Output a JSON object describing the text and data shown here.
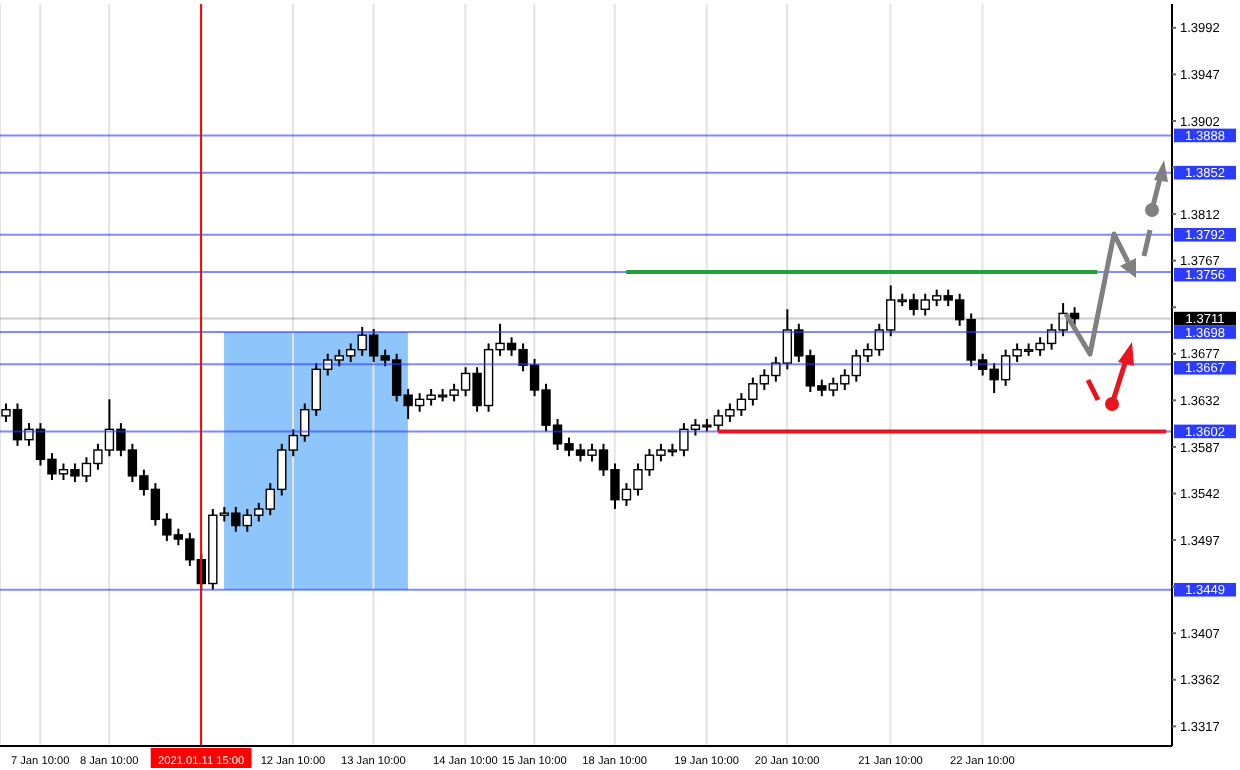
{
  "chart_data": {
    "type": "candlestick",
    "categories": [
      null,
      null,
      null,
      "7 Jan 10:00",
      null,
      null,
      null,
      null,
      null,
      "8 Jan 10:00",
      null,
      null,
      null,
      null,
      null,
      null,
      null,
      "2021.01.11 15:00",
      null,
      null,
      null,
      null,
      null,
      null,
      null,
      "12 Jan 10:00",
      null,
      null,
      null,
      null,
      null,
      null,
      "13 Jan 10:00",
      null,
      null,
      null,
      null,
      null,
      null,
      null,
      "14 Jan 10:00",
      null,
      null,
      null,
      null,
      null,
      "15 Jan 10:00",
      null,
      null,
      null,
      null,
      null,
      null,
      "18 Jan 10:00",
      null,
      null,
      null,
      null,
      null,
      null,
      null,
      "19 Jan 10:00",
      null,
      null,
      null,
      null,
      null,
      null,
      "20 Jan 10:00",
      null,
      null,
      null,
      null,
      null,
      null,
      null,
      null,
      "21 Jan 10:00",
      null,
      null,
      null,
      null,
      null,
      null,
      null,
      "22 Jan 10:00",
      null,
      null,
      null,
      null,
      null,
      null,
      null,
      null,
      null,
      null,
      null,
      null,
      null,
      null,
      null,
      null
    ],
    "series": [
      {
        "color": "#000000",
        "ohlc": [
          [
            1.3617,
            1.3629,
            1.3611,
            1.3623
          ],
          [
            1.3623,
            1.3629,
            1.3588,
            1.3594
          ],
          [
            1.3594,
            1.361,
            1.3588,
            1.3604
          ],
          [
            1.3604,
            1.361,
            1.3569,
            1.3575
          ],
          [
            1.3575,
            1.3581,
            1.3555,
            1.3561
          ],
          [
            1.3561,
            1.3571,
            1.3555,
            1.3565
          ],
          [
            1.3565,
            1.3571,
            1.3553,
            1.3559
          ],
          [
            1.3559,
            1.3577,
            1.3553,
            1.3571
          ],
          [
            1.3571,
            1.359,
            1.3565,
            1.3584
          ],
          [
            1.3584,
            1.3633,
            1.3578,
            1.3604
          ],
          [
            1.3604,
            1.361,
            1.3578,
            1.3584
          ],
          [
            1.3584,
            1.359,
            1.3553,
            1.3559
          ],
          [
            1.3559,
            1.3565,
            1.354,
            1.3546
          ],
          [
            1.3546,
            1.3552,
            1.3511,
            1.3517
          ],
          [
            1.3517,
            1.3523,
            1.3496,
            1.3502
          ],
          [
            1.3502,
            1.3508,
            1.3492,
            1.3498
          ],
          [
            1.3498,
            1.3504,
            1.3472,
            1.3478
          ],
          [
            1.3478,
            1.3484,
            1.3449,
            1.3455
          ],
          [
            1.3455,
            1.3527,
            1.3449,
            1.3521
          ],
          [
            1.3521,
            1.3529,
            1.3515,
            1.3523
          ],
          [
            1.3523,
            1.3529,
            1.3505,
            1.3511
          ],
          [
            1.3511,
            1.3527,
            1.3505,
            1.3521
          ],
          [
            1.3521,
            1.3533,
            1.3515,
            1.3527
          ],
          [
            1.3527,
            1.3552,
            1.3521,
            1.3546
          ],
          [
            1.3546,
            1.359,
            1.354,
            1.3584
          ],
          [
            1.3584,
            1.3604,
            1.3578,
            1.3598
          ],
          [
            1.3598,
            1.3629,
            1.3592,
            1.3623
          ],
          [
            1.3623,
            1.3668,
            1.3617,
            1.3662
          ],
          [
            1.3662,
            1.3677,
            1.3656,
            1.3671
          ],
          [
            1.3671,
            1.3681,
            1.3665,
            1.3675
          ],
          [
            1.3675,
            1.3687,
            1.3669,
            1.3681
          ],
          [
            1.3681,
            1.3703,
            1.3675,
            1.3695
          ],
          [
            1.3695,
            1.3701,
            1.3669,
            1.3675
          ],
          [
            1.3675,
            1.3681,
            1.3665,
            1.3671
          ],
          [
            1.3671,
            1.3677,
            1.3631,
            1.3637
          ],
          [
            1.3637,
            1.3643,
            1.3614,
            1.3627
          ],
          [
            1.3627,
            1.3639,
            1.3621,
            1.3633
          ],
          [
            1.3633,
            1.3643,
            1.3627,
            1.3637
          ],
          [
            1.3637,
            1.3643,
            1.3631,
            1.3637
          ],
          [
            1.3637,
            1.3648,
            1.3631,
            1.3642
          ],
          [
            1.3642,
            1.3664,
            1.3636,
            1.3658
          ],
          [
            1.3658,
            1.3664,
            1.3621,
            1.3627
          ],
          [
            1.3627,
            1.3687,
            1.3621,
            1.3681
          ],
          [
            1.3681,
            1.3706,
            1.3675,
            1.3687
          ],
          [
            1.3687,
            1.3693,
            1.3675,
            1.3681
          ],
          [
            1.3681,
            1.3687,
            1.366,
            1.3666
          ],
          [
            1.3666,
            1.3672,
            1.3636,
            1.3642
          ],
          [
            1.3642,
            1.3648,
            1.3602,
            1.3608
          ],
          [
            1.3608,
            1.3614,
            1.3584,
            1.359
          ],
          [
            1.359,
            1.3596,
            1.3578,
            1.3584
          ],
          [
            1.3584,
            1.359,
            1.3573,
            1.3579
          ],
          [
            1.3579,
            1.359,
            1.3573,
            1.3584
          ],
          [
            1.3584,
            1.359,
            1.3559,
            1.3565
          ],
          [
            1.3565,
            1.3571,
            1.3527,
            1.3536
          ],
          [
            1.3536,
            1.3552,
            1.353,
            1.3546
          ],
          [
            1.3546,
            1.3571,
            1.354,
            1.3565
          ],
          [
            1.3565,
            1.3585,
            1.3559,
            1.3579
          ],
          [
            1.3579,
            1.359,
            1.3573,
            1.3584
          ],
          [
            1.3584,
            1.359,
            1.3578,
            1.3584
          ],
          [
            1.3584,
            1.361,
            1.3578,
            1.3604
          ],
          [
            1.3604,
            1.3614,
            1.3598,
            1.3608
          ],
          [
            1.3608,
            1.3614,
            1.3602,
            1.3608
          ],
          [
            1.3608,
            1.3623,
            1.3602,
            1.3617
          ],
          [
            1.3617,
            1.3629,
            1.3611,
            1.3623
          ],
          [
            1.3623,
            1.3639,
            1.3617,
            1.3633
          ],
          [
            1.3633,
            1.3654,
            1.3627,
            1.3648
          ],
          [
            1.3648,
            1.3662,
            1.3642,
            1.3656
          ],
          [
            1.3656,
            1.3674,
            1.365,
            1.3668
          ],
          [
            1.3668,
            1.372,
            1.3662,
            1.37
          ],
          [
            1.37,
            1.3706,
            1.3669,
            1.3675
          ],
          [
            1.3675,
            1.3681,
            1.364,
            1.3646
          ],
          [
            1.3646,
            1.3652,
            1.3636,
            1.3642
          ],
          [
            1.3642,
            1.3654,
            1.3636,
            1.3648
          ],
          [
            1.3648,
            1.3662,
            1.3642,
            1.3656
          ],
          [
            1.3656,
            1.3681,
            1.365,
            1.3675
          ],
          [
            1.3675,
            1.3687,
            1.3669,
            1.3681
          ],
          [
            1.3681,
            1.3706,
            1.3675,
            1.37
          ],
          [
            1.37,
            1.3743,
            1.3694,
            1.3729
          ],
          [
            1.3729,
            1.3735,
            1.3723,
            1.3729
          ],
          [
            1.3729,
            1.3735,
            1.3714,
            1.372
          ],
          [
            1.372,
            1.3735,
            1.3714,
            1.3729
          ],
          [
            1.3729,
            1.3739,
            1.3723,
            1.3733
          ],
          [
            1.3733,
            1.3739,
            1.3723,
            1.3729
          ],
          [
            1.3729,
            1.3735,
            1.3704,
            1.371
          ],
          [
            1.371,
            1.3716,
            1.3665,
            1.3671
          ],
          [
            1.3671,
            1.3677,
            1.3656,
            1.3662
          ],
          [
            1.3662,
            1.3668,
            1.3639,
            1.3652
          ],
          [
            1.3652,
            1.3681,
            1.3646,
            1.3675
          ],
          [
            1.3675,
            1.3687,
            1.3669,
            1.3681
          ],
          [
            1.3681,
            1.3687,
            1.3675,
            1.3681
          ],
          [
            1.3681,
            1.3693,
            1.3675,
            1.3687
          ],
          [
            1.3687,
            1.3706,
            1.3681,
            1.37
          ],
          [
            1.37,
            1.3726,
            1.3694,
            1.3716
          ],
          [
            1.3716,
            1.3722,
            1.3705,
            1.3711
          ],
          null,
          null,
          null,
          null,
          null,
          null,
          null,
          null
        ]
      },
      {
        "type": "line",
        "color": "#22a03a",
        "values": [
          null,
          null,
          null,
          null,
          null,
          null,
          null,
          null,
          null,
          null,
          null,
          null,
          null,
          null,
          null,
          null,
          null,
          null,
          null,
          null,
          null,
          null,
          null,
          null,
          null,
          null,
          null,
          null,
          null,
          null,
          null,
          null,
          null,
          null,
          null,
          null,
          null,
          null,
          null,
          null,
          null,
          null,
          null,
          null,
          null,
          null,
          null,
          null,
          null,
          null,
          null,
          null,
          null,
          null,
          1.3756,
          1.3756,
          1.3756,
          1.3756,
          1.3756,
          1.3756,
          1.3756,
          1.3756,
          1.3756,
          1.3756,
          1.3756,
          1.3756,
          1.3756,
          1.3756,
          1.3756,
          1.3756,
          1.3756,
          1.3756,
          1.3756,
          1.3756,
          1.3756,
          1.3756,
          1.3756,
          1.3756,
          1.3756,
          1.3756,
          1.3756,
          1.3756,
          1.3756,
          1.3756,
          1.3756,
          1.3756,
          1.3756,
          1.3756,
          1.3756,
          1.3756,
          1.3756,
          1.3756,
          1.3756,
          1.3756,
          1.3756,
          1.3756,
          null,
          null,
          null,
          null,
          null,
          null
        ]
      },
      {
        "type": "line",
        "color": "#e8141e",
        "values": [
          null,
          null,
          null,
          null,
          null,
          null,
          null,
          null,
          null,
          null,
          null,
          null,
          null,
          null,
          null,
          null,
          null,
          null,
          null,
          null,
          null,
          null,
          null,
          null,
          null,
          null,
          null,
          null,
          null,
          null,
          null,
          null,
          null,
          null,
          null,
          null,
          null,
          null,
          null,
          null,
          null,
          null,
          null,
          null,
          null,
          null,
          null,
          null,
          null,
          null,
          null,
          null,
          null,
          null,
          null,
          null,
          null,
          null,
          null,
          null,
          null,
          null,
          1.3602,
          1.3602,
          1.3602,
          1.3602,
          1.3602,
          1.3602,
          1.3602,
          1.3602,
          1.3602,
          1.3602,
          1.3602,
          1.3602,
          1.3602,
          1.3602,
          1.3602,
          1.3602,
          1.3602,
          1.3602,
          1.3602,
          1.3602,
          1.3602,
          1.3602,
          1.3602,
          1.3602,
          1.3602,
          1.3602,
          1.3602,
          1.3602,
          1.3602,
          1.3602,
          1.3602,
          1.3602,
          1.3602,
          1.3602,
          1.3602,
          1.3602,
          1.3602,
          1.3602,
          1.3602,
          1.3602
        ]
      }
    ],
    "ylim": [
      1.3298,
      1.4015
    ],
    "yticks": [
      1.3317,
      1.3362,
      1.3407,
      {
        "value": 1.3452,
        "label": null
      },
      1.3497,
      1.3542,
      1.3587,
      1.3632,
      1.3677,
      {
        "value": 1.3722,
        "label": null
      },
      1.3767,
      1.3812,
      {
        "value": 1.3857,
        "label": null
      },
      1.3902,
      1.3947,
      1.3992
    ],
    "grid": true,
    "ref_lines": [
      {
        "axis": "y",
        "value": 1.3888,
        "label": "1.3888",
        "color": "#2b3cff"
      },
      {
        "axis": "y",
        "value": 1.3852,
        "label": "1.3852",
        "color": "#2b3cff"
      },
      {
        "axis": "y",
        "value": 1.3792,
        "label": "1.3792",
        "color": "#2b3cff"
      },
      {
        "axis": "y",
        "value": 1.3756,
        "label": "1.3756",
        "color": "#2b3cff"
      },
      {
        "axis": "y",
        "value": 1.3711,
        "label": "1.3711",
        "color": "#000000"
      },
      {
        "axis": "y",
        "value": 1.3698,
        "label": "1.3698",
        "color": "#2b3cff"
      },
      {
        "axis": "y",
        "value": 1.3667,
        "label": "1.3667",
        "color": "#2b3cff"
      },
      {
        "axis": "y",
        "value": 1.3602,
        "label": "1.3602",
        "color": "#2b3cff"
      },
      {
        "axis": "y",
        "value": 1.3449,
        "label": "1.3449",
        "color": "#2b3cff"
      },
      {
        "axis": "x",
        "value": "2021.01.11 15:00",
        "color": "#ff0000"
      }
    ]
  }
}
